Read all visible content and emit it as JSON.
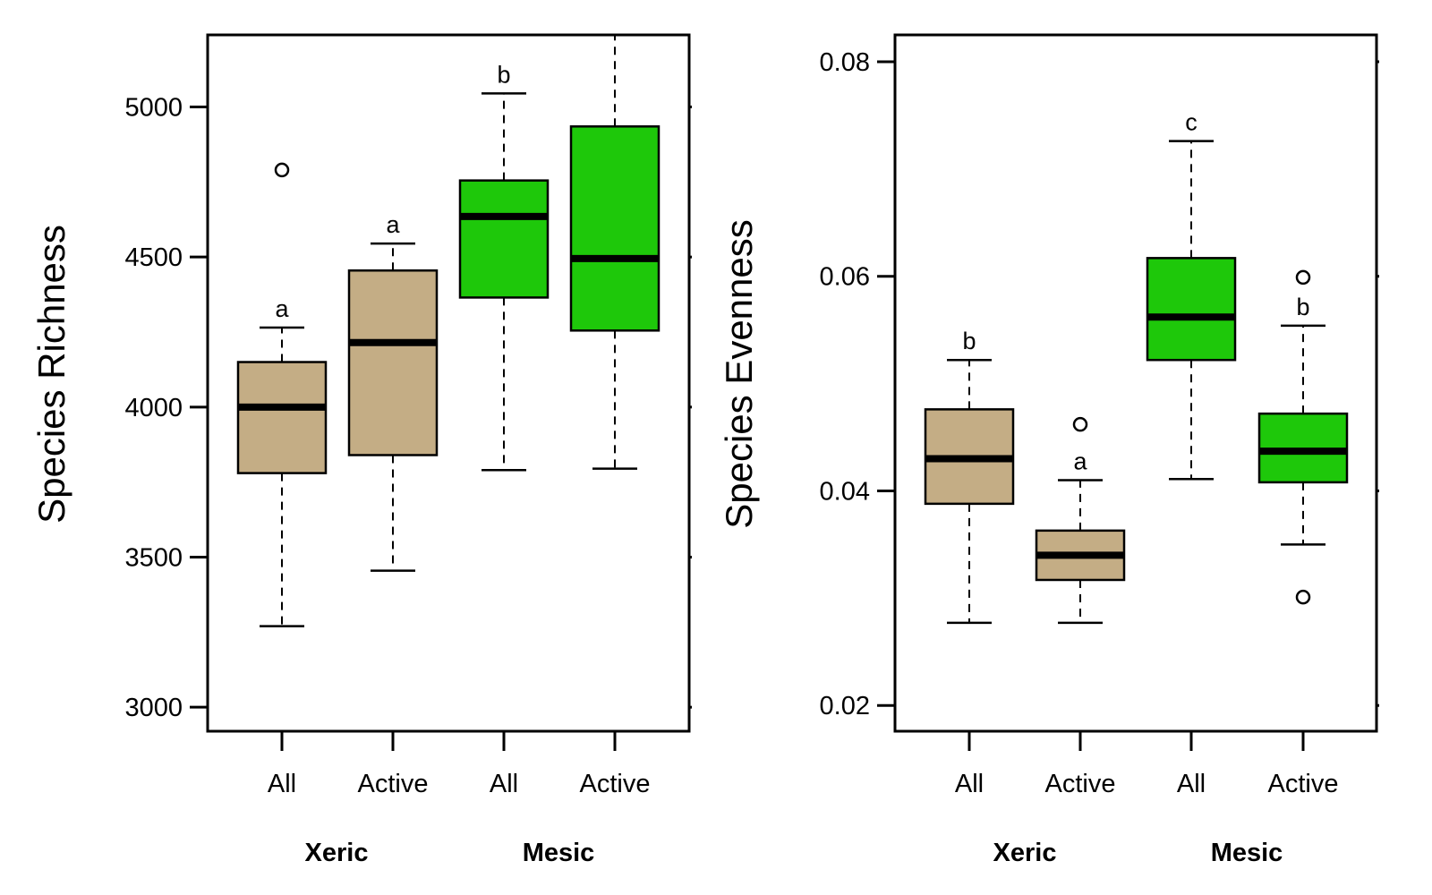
{
  "colors": {
    "xeric": "#c4ad85",
    "mesic": "#1ec80a",
    "line": "#000000"
  },
  "chart_data": [
    {
      "type": "boxplot",
      "ylabel": "Species Richness",
      "ylim": [
        2920,
        5240
      ],
      "yticks": [
        3000,
        3500,
        4000,
        4500,
        5000
      ],
      "categories": [
        "All",
        "Active",
        "All",
        "Active"
      ],
      "groups": [
        {
          "label": "Xeric",
          "color": "xeric",
          "members": [
            0,
            1
          ]
        },
        {
          "label": "Mesic",
          "color": "mesic",
          "members": [
            2,
            3
          ]
        }
      ],
      "boxes": [
        {
          "group": "Xeric",
          "lower_whisker": 3270,
          "q1": 3780,
          "median": 4000,
          "q3": 4150,
          "upper_whisker": 4265,
          "outliers": [
            4790
          ],
          "letter": "a"
        },
        {
          "group": "Xeric",
          "lower_whisker": 3455,
          "q1": 3840,
          "median": 4215,
          "q3": 4455,
          "upper_whisker": 4545,
          "outliers": [],
          "letter": "a"
        },
        {
          "group": "Mesic",
          "lower_whisker": 3790,
          "q1": 4365,
          "median": 4635,
          "q3": 4755,
          "upper_whisker": 5045,
          "outliers": [],
          "letter": "b"
        },
        {
          "group": "Mesic",
          "lower_whisker": 3795,
          "q1": 4255,
          "median": 4495,
          "q3": 4935,
          "upper_whisker": 5320,
          "outliers": [],
          "letter": ""
        }
      ]
    },
    {
      "type": "boxplot",
      "ylabel": "Species Evenness",
      "ylim": [
        0.0176,
        0.0825
      ],
      "yticks": [
        0.02,
        0.04,
        0.06,
        0.08
      ],
      "yticklabels": [
        "0.02",
        "0.04",
        "0.06",
        "0.08"
      ],
      "categories": [
        "All",
        "Active",
        "All",
        "Active"
      ],
      "groups": [
        {
          "label": "Xeric",
          "color": "xeric",
          "members": [
            0,
            1
          ]
        },
        {
          "label": "Mesic",
          "color": "mesic",
          "members": [
            2,
            3
          ]
        }
      ],
      "boxes": [
        {
          "group": "Xeric",
          "lower_whisker": 0.0277,
          "q1": 0.0388,
          "median": 0.043,
          "q3": 0.0476,
          "upper_whisker": 0.0522,
          "outliers": [],
          "letter": "b"
        },
        {
          "group": "Xeric",
          "lower_whisker": 0.0277,
          "q1": 0.0317,
          "median": 0.034,
          "q3": 0.0363,
          "upper_whisker": 0.041,
          "outliers": [
            0.0462
          ],
          "letter": "a"
        },
        {
          "group": "Mesic",
          "lower_whisker": 0.0411,
          "q1": 0.0522,
          "median": 0.0562,
          "q3": 0.0617,
          "upper_whisker": 0.0726,
          "outliers": [],
          "letter": "c"
        },
        {
          "group": "Mesic",
          "lower_whisker": 0.035,
          "q1": 0.0408,
          "median": 0.0437,
          "q3": 0.0472,
          "upper_whisker": 0.0554,
          "outliers": [
            0.0599,
            0.0301
          ],
          "letter": "b"
        }
      ]
    }
  ]
}
